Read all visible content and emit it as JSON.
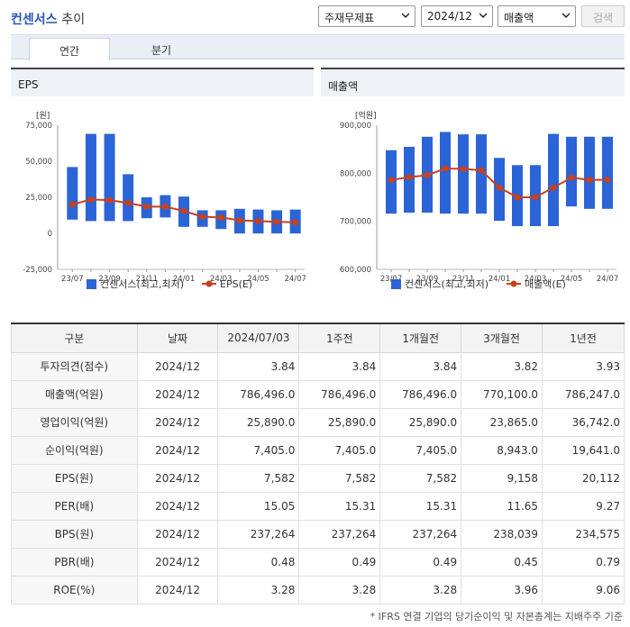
{
  "header": {
    "title_main": "컨센서스",
    "title_sub": "추이",
    "select_type": "주재무제표",
    "select_period": "2024/12",
    "select_metric": "매출액",
    "search_label": "검색"
  },
  "tabs": [
    {
      "label": "연간"
    },
    {
      "label": "분기"
    }
  ],
  "chart_data": [
    {
      "type": "bar",
      "title": "EPS",
      "ylabel": "[원]",
      "ylim": [
        -25000,
        75000
      ],
      "yticks": [
        -25000,
        0,
        25000,
        50000,
        75000
      ],
      "ytick_labels": [
        "-25,000",
        "0",
        "25,000",
        "50,000",
        "75,000"
      ],
      "x": [
        "23/07",
        "23/08",
        "23/09",
        "23/10",
        "23/11",
        "23/12",
        "24/01",
        "24/02",
        "24/03",
        "24/04",
        "24/05",
        "24/06",
        "24/07"
      ],
      "x_tick_labels": [
        "23/07",
        "23/09",
        "23/11",
        "24/01",
        "24/03",
        "24/05",
        "24/07"
      ],
      "series": [
        {
          "name": "컨센서스(최고,최저)",
          "kind": "range_bar",
          "color": "#2b64d6",
          "high": [
            46000,
            69000,
            69000,
            41000,
            25000,
            26500,
            25500,
            16000,
            16000,
            17000,
            16500,
            16000,
            16500
          ],
          "low": [
            9500,
            8500,
            8500,
            8500,
            10500,
            11000,
            4500,
            4500,
            3000,
            -100,
            -100,
            -100,
            -100
          ]
        },
        {
          "name": "EPS(E)",
          "kind": "line",
          "color": "#c9401c",
          "values": [
            20000,
            23500,
            23000,
            21000,
            18500,
            18500,
            15500,
            11500,
            11000,
            9000,
            8500,
            8000,
            7600
          ]
        }
      ]
    },
    {
      "type": "bar",
      "title": "매출액",
      "ylabel": "[억원]",
      "ylim": [
        600000,
        900000
      ],
      "yticks": [
        600000,
        700000,
        800000,
        900000
      ],
      "ytick_labels": [
        "600,000",
        "700,000",
        "800,000",
        "900,000"
      ],
      "x": [
        "23/07",
        "23/08",
        "23/09",
        "23/10",
        "23/11",
        "23/12",
        "24/01",
        "24/02",
        "24/03",
        "24/04",
        "24/05",
        "24/06",
        "24/07"
      ],
      "x_tick_labels": [
        "23/07",
        "23/09",
        "23/11",
        "24/01",
        "24/03",
        "24/05",
        "24/07"
      ],
      "series": [
        {
          "name": "컨센서스(최고,최저)",
          "kind": "range_bar",
          "color": "#2b64d6",
          "high": [
            848000,
            855000,
            876000,
            886000,
            881000,
            881000,
            832000,
            817000,
            817000,
            882000,
            876000,
            876000,
            876000
          ],
          "low": [
            716000,
            718000,
            718000,
            716000,
            716000,
            716000,
            701000,
            690000,
            690000,
            690000,
            731000,
            726000,
            726000
          ]
        },
        {
          "name": "매출액(E)",
          "kind": "line",
          "color": "#c9401c",
          "values": [
            786000,
            792000,
            796000,
            810000,
            809000,
            806000,
            770000,
            750000,
            750000,
            770000,
            791000,
            786000,
            786500
          ]
        }
      ]
    }
  ],
  "table": {
    "columns": [
      "구분",
      "날짜",
      "2024/07/03",
      "1주전",
      "1개월전",
      "3개월전",
      "1년전"
    ],
    "rows": [
      {
        "label": "투자의견(점수)",
        "date": "2024/12",
        "values": [
          "3.84",
          "3.84",
          "3.84",
          "3.82",
          "3.93"
        ]
      },
      {
        "label": "매출액(억원)",
        "date": "2024/12",
        "values": [
          "786,496.0",
          "786,496.0",
          "786,496.0",
          "770,100.0",
          "786,247.0"
        ]
      },
      {
        "label": "영업이익(억원)",
        "date": "2024/12",
        "values": [
          "25,890.0",
          "25,890.0",
          "25,890.0",
          "23,865.0",
          "36,742.0"
        ]
      },
      {
        "label": "순이익(억원)",
        "date": "2024/12",
        "values": [
          "7,405.0",
          "7,405.0",
          "7,405.0",
          "8,943.0",
          "19,641.0"
        ]
      },
      {
        "label": "EPS(원)",
        "date": "2024/12",
        "values": [
          "7,582",
          "7,582",
          "7,582",
          "9,158",
          "20,112"
        ]
      },
      {
        "label": "PER(배)",
        "date": "2024/12",
        "values": [
          "15.05",
          "15.31",
          "15.31",
          "11.65",
          "9.27"
        ]
      },
      {
        "label": "BPS(원)",
        "date": "2024/12",
        "values": [
          "237,264",
          "237,264",
          "237,264",
          "238,039",
          "234,575"
        ]
      },
      {
        "label": "PBR(배)",
        "date": "2024/12",
        "values": [
          "0.48",
          "0.49",
          "0.49",
          "0.45",
          "0.79"
        ]
      },
      {
        "label": "ROE(%)",
        "date": "2024/12",
        "values": [
          "3.28",
          "3.28",
          "3.28",
          "3.96",
          "9.06"
        ]
      }
    ]
  },
  "footnote": "* IFRS 연결 기업의 당기순이익 및 자본총계는 지배주주 기준"
}
